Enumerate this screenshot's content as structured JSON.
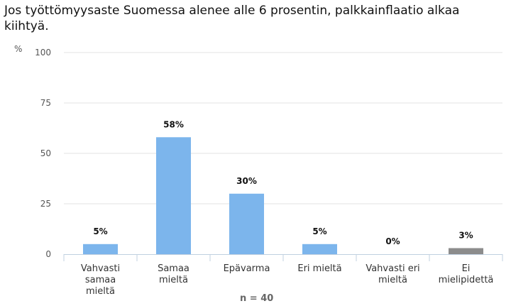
{
  "title": "Jos työttömyysaste Suomessa alenee alle 6 prosentin, palkkainflaatio alkaa kiihtyä.",
  "footnote": "n = 40",
  "chart_data": {
    "type": "bar",
    "ylabel": "%",
    "ylim": [
      0,
      100
    ],
    "yticks": [
      0,
      25,
      50,
      75,
      100
    ],
    "categories": [
      [
        "Vahvasti",
        "samaa",
        "mieltä"
      ],
      [
        "Samaa",
        "mieltä"
      ],
      [
        "Epävarma"
      ],
      [
        "Eri mieltä"
      ],
      [
        "Vahvasti eri",
        "mieltä"
      ],
      [
        "Ei",
        "mielipidettä"
      ]
    ],
    "values": [
      5,
      58,
      30,
      5,
      0,
      3
    ],
    "labels": [
      "5%",
      "58%",
      "30%",
      "5%",
      "0%",
      "3%"
    ],
    "colors": [
      "#7cb5ec",
      "#7cb5ec",
      "#7cb5ec",
      "#7cb5ec",
      "#7cb5ec",
      "#8c8c8c"
    ],
    "grid": true
  }
}
